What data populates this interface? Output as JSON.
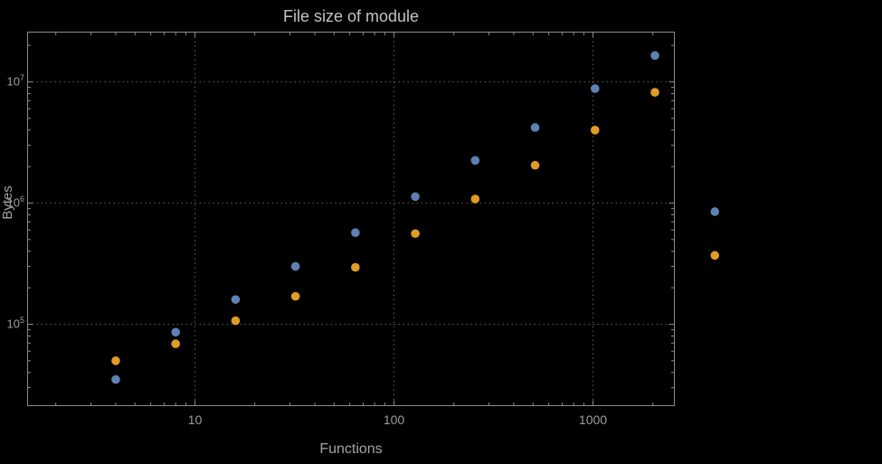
{
  "chart_data": {
    "type": "scatter",
    "title": "File size of module",
    "xlabel": "Functions",
    "ylabel": "Bytes",
    "x_scale": "log",
    "y_scale": "log",
    "grid": "dotted",
    "legend": "none",
    "xlim_approx": [
      1.5,
      2560
    ],
    "ylim_approx": [
      21000,
      26500000
    ],
    "x_ticks": [
      {
        "value": 10,
        "label": "10"
      },
      {
        "value": 100,
        "label": "100"
      },
      {
        "value": 1000,
        "label": "1000"
      }
    ],
    "y_ticks": [
      {
        "value": 100000,
        "base": "10",
        "exp": "5"
      },
      {
        "value": 1000000,
        "base": "10",
        "exp": "6"
      },
      {
        "value": 10000000,
        "base": "10",
        "exp": "7"
      }
    ],
    "x": [
      4,
      8,
      16,
      32,
      64,
      128,
      256,
      512,
      1024,
      2048,
      4096
    ],
    "series": [
      {
        "name": "blue",
        "color": "#5e81b5",
        "values": [
          35000,
          86000,
          160000,
          300000,
          570000,
          1130000,
          2250000,
          4200000,
          8800000,
          16500000,
          850000
        ]
      },
      {
        "name": "orange",
        "color": "#e19c24",
        "values": [
          50000,
          69000,
          107000,
          170000,
          295000,
          560000,
          1080000,
          2050000,
          4000000,
          8200000,
          370000
        ]
      }
    ]
  }
}
